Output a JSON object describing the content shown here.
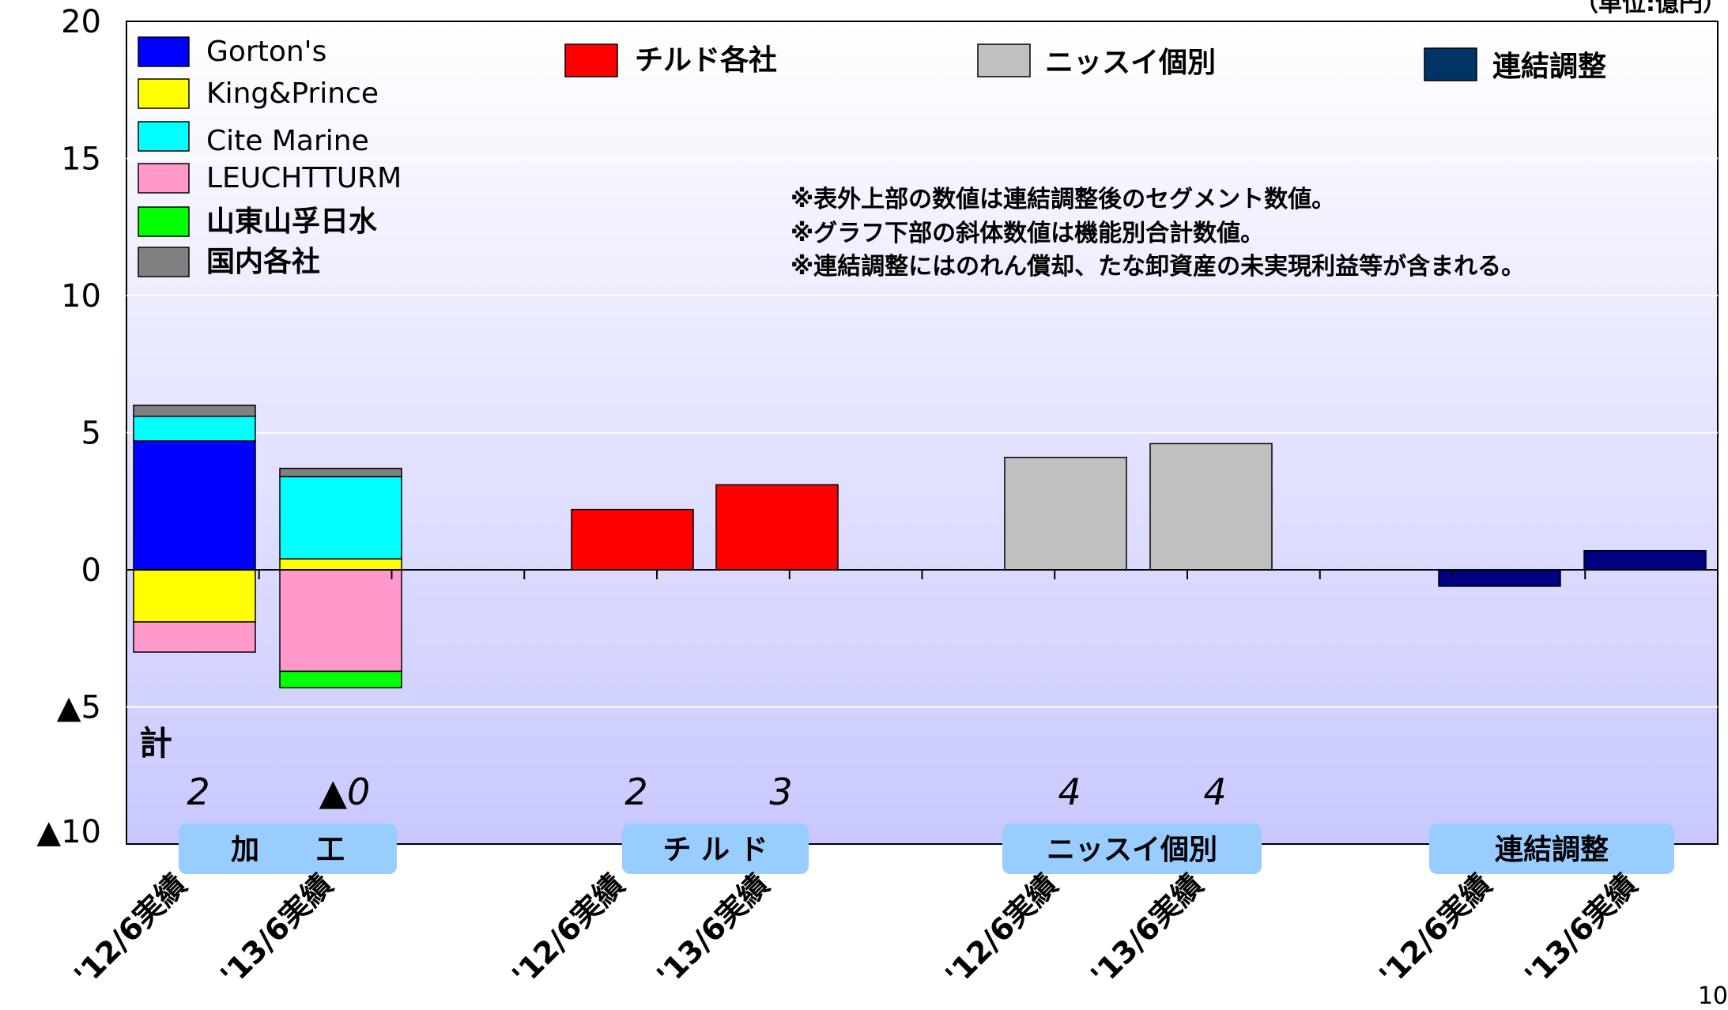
{
  "chart_data": {
    "type": "bar",
    "stacked": true,
    "unit_label": "（単位:億円）",
    "ylim": [
      -10,
      20
    ],
    "y_ticks": [
      {
        "value": 20,
        "label": "20"
      },
      {
        "value": 15,
        "label": "15"
      },
      {
        "value": 10,
        "label": "10"
      },
      {
        "value": 5,
        "label": "5"
      },
      {
        "value": 0,
        "label": "0"
      },
      {
        "value": -5,
        "label": "▲5"
      },
      {
        "value": -10,
        "label": "▲10"
      }
    ],
    "grid": true,
    "categories": [
      "'12/6実績",
      "'13/6実績",
      "'12/6実績",
      "'13/6実績",
      "'12/6実績",
      "'13/6実績",
      "'12/6実績",
      "'13/6実績"
    ],
    "groups": [
      {
        "label": "加　　工",
        "categories": [
          0,
          1
        ]
      },
      {
        "label": "チ ル ド",
        "categories": [
          2,
          3
        ]
      },
      {
        "label": "ニッスイ個別",
        "categories": [
          4,
          5
        ]
      },
      {
        "label": "連結調整",
        "categories": [
          6,
          7
        ]
      }
    ],
    "series": [
      {
        "name": "Gorton's",
        "color": "#0000ff",
        "values": [
          4.7,
          0,
          0,
          0,
          0,
          0,
          0,
          0
        ]
      },
      {
        "name": "King&Prince",
        "color": "#ffff00",
        "values": [
          -1.9,
          0.4,
          0,
          0,
          0,
          0,
          0,
          0
        ]
      },
      {
        "name": "Cite Marine",
        "color": "#00ffff",
        "values": [
          0.9,
          3.0,
          0,
          0,
          0,
          0,
          0,
          0
        ]
      },
      {
        "name": "LEUCHTTURM",
        "color": "#ff99cc",
        "values": [
          -1.1,
          -3.7,
          0,
          0,
          0,
          0,
          0,
          0
        ]
      },
      {
        "name": "山東山孚日水",
        "color": "#00ff00",
        "values": [
          0,
          -0.6,
          0,
          0,
          0,
          0,
          0,
          0
        ]
      },
      {
        "name": "国内各社",
        "color": "#808080",
        "values": [
          0.4,
          0.3,
          0,
          0,
          0,
          0,
          0,
          0
        ]
      },
      {
        "name": "チルド各社",
        "color": "#ff0000",
        "values": [
          0,
          0,
          2.2,
          3.1,
          0,
          0,
          0,
          0
        ]
      },
      {
        "name": "ニッスイ個別",
        "color": "#c0c0c0",
        "values": [
          0,
          0,
          0,
          0,
          4.1,
          4.6,
          0,
          0
        ]
      },
      {
        "name": "連結調整",
        "color": "#000080",
        "values": [
          0,
          0,
          0,
          0,
          0,
          0,
          -0.6,
          0.7
        ]
      }
    ],
    "totals_label": "計",
    "totals": [
      "2",
      "▲0",
      "2",
      "3",
      "4",
      "4",
      "",
      ""
    ],
    "notes": [
      "※表外上部の数値は連結調整後のセグメント数値。",
      "※グラフ下部の斜体数値は機能別合計数値。",
      "※連結調整にはのれん償却、たな卸資産の未実現利益等が含まれる。"
    ],
    "page_number": "10"
  }
}
